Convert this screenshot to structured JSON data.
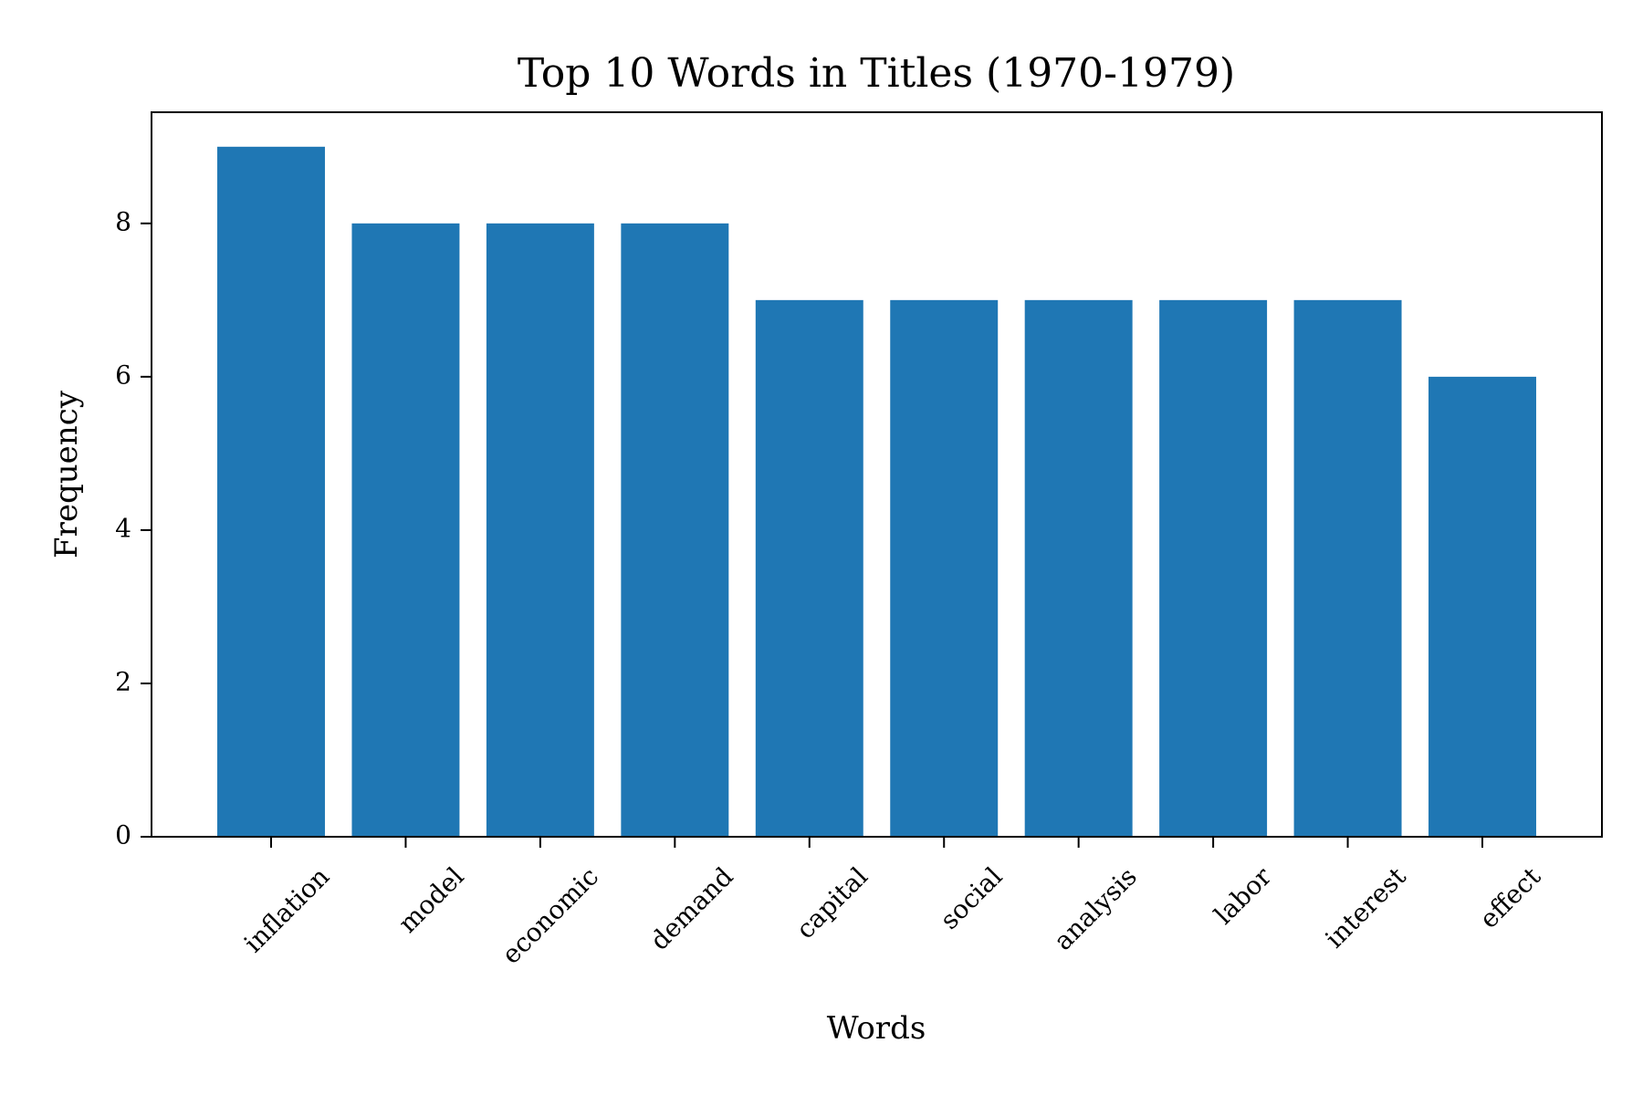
{
  "chart_data": {
    "type": "bar",
    "title": "Top 10 Words in Titles (1970-1979)",
    "xlabel": "Words",
    "ylabel": "Frequency",
    "categories": [
      "inflation",
      "model",
      "economic",
      "demand",
      "capital",
      "social",
      "analysis",
      "labor",
      "interest",
      "effect"
    ],
    "values": [
      9,
      8,
      8,
      8,
      7,
      7,
      7,
      7,
      7,
      6
    ],
    "ylim": [
      0,
      9.45
    ],
    "yticks": [
      0,
      2,
      4,
      6,
      8
    ],
    "ytick_labels": [
      "0",
      "2",
      "4",
      "6",
      "8"
    ],
    "bar_color": "#1f77b4",
    "grid": false,
    "legend": "none"
  }
}
